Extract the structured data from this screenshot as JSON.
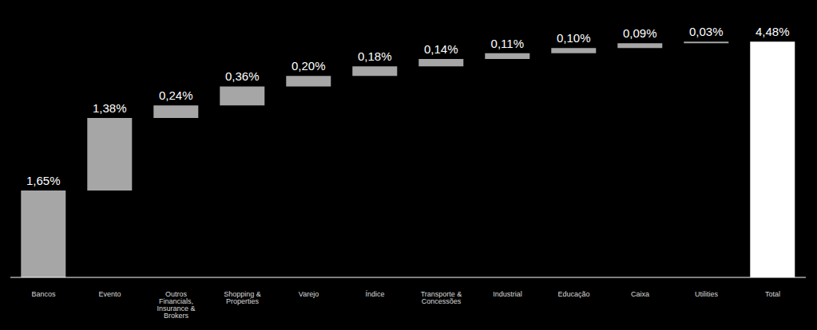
{
  "chart_data": {
    "type": "waterfall",
    "categories": [
      "Bancos",
      "Evento",
      "Outros Financials, Insurance & Brokers",
      "Shopping & Properties",
      "Varejo",
      "Índice",
      "Transporte & Concessões",
      "Industrial",
      "Educação",
      "Caixa",
      "Utilities",
      "Total"
    ],
    "values": [
      1.65,
      1.38,
      0.24,
      0.36,
      0.2,
      0.18,
      0.14,
      0.11,
      0.1,
      0.09,
      0.03,
      4.48
    ],
    "value_labels": [
      "1,65%",
      "1,38%",
      "0,24%",
      "0,36%",
      "0,20%",
      "0,18%",
      "0,14%",
      "0,11%",
      "0,10%",
      "0,09%",
      "0,03%",
      "4,48%"
    ],
    "colors": [
      "#a6a6a6",
      "#a6a6a6",
      "#a6a6a6",
      "#a6a6a6",
      "#a6a6a6",
      "#a6a6a6",
      "#a6a6a6",
      "#a6a6a6",
      "#a6a6a6",
      "#a6a6a6",
      "#a6a6a6",
      "#ffffff"
    ],
    "ylim": [
      0,
      5
    ],
    "yticks": [
      0,
      5
    ],
    "data_labels": true,
    "tick_labels": "x"
  }
}
